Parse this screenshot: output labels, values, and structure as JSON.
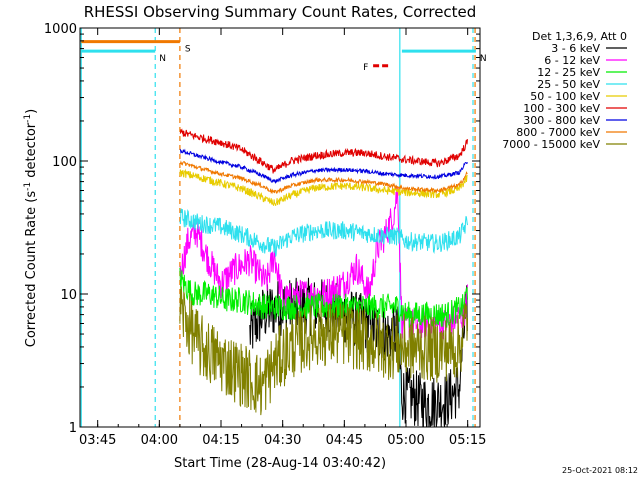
{
  "chart_data": {
    "type": "line",
    "title": "RHESSI Observing Summary Count Rates, Corrected",
    "xlabel": "Start Time (28-Aug-14 03:40:42)",
    "ylabel": "Corrected Count Rate (s",
    "ylabel_sup": "-1",
    "ylabel_mid": " detector",
    "ylabel_sup2": "-1",
    "ylabel_end": ")",
    "y_scale": "log",
    "ylim": [
      1,
      1000
    ],
    "xlim": [
      "03:40:42",
      "05:18:00"
    ],
    "x_ticks": [
      "03:45",
      "04:00",
      "04:15",
      "04:30",
      "04:45",
      "05:00",
      "05:15"
    ],
    "y_ticks": [
      "1",
      "10",
      "100",
      "1000"
    ],
    "legend_header": "Det 1,3,6,9, Att 0",
    "legend_placement": "right",
    "footer_timestamp": "25-Oct-2021 08:12",
    "flags": [
      {
        "label": "S",
        "color": "#f07800",
        "from": "03:41",
        "to": "04:05",
        "level": 790
      },
      {
        "label": "N",
        "color": "#2ee0ee",
        "from": "03:41",
        "to": "03:59",
        "level": 670
      },
      {
        "label": "N",
        "color": "#2ee0ee",
        "from": "04:59",
        "to": "05:17",
        "level": 670
      },
      {
        "label": "F",
        "color": "#e00000",
        "from": "04:52",
        "to": "04:56",
        "level": 520
      }
    ],
    "vlines": [
      {
        "time": "03:41",
        "color": "#2ee0ee",
        "style": "solid"
      },
      {
        "time": "03:59",
        "color": "#2ee0ee",
        "style": "dashed"
      },
      {
        "time": "04:05",
        "color": "#f07800",
        "style": "dashed"
      },
      {
        "time": "04:58.5",
        "color": "#2ee0ee",
        "style": "solid"
      },
      {
        "time": "05:16.3",
        "color": "#2ee0ee",
        "style": "dashed"
      },
      {
        "time": "05:16.8",
        "color": "#f07800",
        "style": "dashed"
      }
    ],
    "series": [
      {
        "name": "3 - 6 keV",
        "color": "#000000",
        "noise": 0.22,
        "points": [
          [
            "04:22",
            5
          ],
          [
            "04:25",
            7
          ],
          [
            "04:29",
            8
          ],
          [
            "04:35",
            8
          ],
          [
            "04:40",
            8
          ],
          [
            "04:45",
            7
          ],
          [
            "04:50",
            6
          ],
          [
            "04:55",
            5
          ],
          [
            "04:58",
            5
          ],
          [
            "04:59",
            1.8
          ],
          [
            "05:05",
            1.5
          ],
          [
            "05:10",
            1.6
          ],
          [
            "05:13",
            2
          ],
          [
            "05:14",
            5
          ],
          [
            "05:15",
            8
          ]
        ]
      },
      {
        "name": "6 - 12 keV",
        "color": "#ff00ff",
        "noise": 0.12,
        "points": [
          [
            "04:05",
            14
          ],
          [
            "04:07",
            25
          ],
          [
            "04:09",
            30
          ],
          [
            "04:12",
            18
          ],
          [
            "04:15",
            12
          ],
          [
            "04:18",
            15
          ],
          [
            "04:22",
            18
          ],
          [
            "04:26",
            12
          ],
          [
            "04:28",
            20
          ],
          [
            "04:30",
            9
          ],
          [
            "04:35",
            10
          ],
          [
            "04:40",
            10
          ],
          [
            "04:45",
            12
          ],
          [
            "04:48",
            16
          ],
          [
            "04:51",
            10
          ],
          [
            "04:53",
            22
          ],
          [
            "04:55",
            28
          ],
          [
            "04:57",
            40
          ],
          [
            "04:58",
            62
          ],
          [
            "04:59",
            6
          ],
          [
            "05:05",
            6
          ],
          [
            "05:10",
            6
          ],
          [
            "05:14",
            7
          ],
          [
            "05:15",
            10
          ]
        ]
      },
      {
        "name": "12 - 25 keV",
        "color": "#00ee00",
        "noise": 0.1,
        "points": [
          [
            "04:05",
            13
          ],
          [
            "04:08",
            10
          ],
          [
            "04:12",
            10
          ],
          [
            "04:16",
            9
          ],
          [
            "04:20",
            9
          ],
          [
            "04:26",
            8
          ],
          [
            "04:30",
            8
          ],
          [
            "04:40",
            8
          ],
          [
            "04:50",
            8
          ],
          [
            "04:58",
            8
          ],
          [
            "05:00",
            7
          ],
          [
            "05:10",
            7
          ],
          [
            "05:14",
            8
          ],
          [
            "05:15",
            11
          ]
        ]
      },
      {
        "name": "25 - 50 keV",
        "color": "#2ee0ee",
        "noise": 0.07,
        "points": [
          [
            "04:05",
            38
          ],
          [
            "04:10",
            34
          ],
          [
            "04:15",
            32
          ],
          [
            "04:20",
            28
          ],
          [
            "04:25",
            24
          ],
          [
            "04:28",
            22
          ],
          [
            "04:32",
            27
          ],
          [
            "04:38",
            30
          ],
          [
            "04:45",
            30
          ],
          [
            "04:52",
            28
          ],
          [
            "04:58",
            27
          ],
          [
            "05:00",
            25
          ],
          [
            "05:08",
            24
          ],
          [
            "05:13",
            27
          ],
          [
            "05:15",
            35
          ]
        ]
      },
      {
        "name": "50 - 100 keV",
        "color": "#e8cc00",
        "noise": 0.03,
        "points": [
          [
            "04:05",
            82
          ],
          [
            "04:10",
            75
          ],
          [
            "04:15",
            68
          ],
          [
            "04:20",
            62
          ],
          [
            "04:25",
            53
          ],
          [
            "04:28",
            48
          ],
          [
            "04:32",
            55
          ],
          [
            "04:38",
            63
          ],
          [
            "04:45",
            65
          ],
          [
            "04:50",
            63
          ],
          [
            "04:55",
            60
          ],
          [
            "05:00",
            58
          ],
          [
            "05:08",
            56
          ],
          [
            "05:13",
            62
          ],
          [
            "05:15",
            75
          ]
        ]
      },
      {
        "name": "100 - 300 keV",
        "color": "#e00000",
        "noise": 0.03,
        "points": [
          [
            "04:05",
            165
          ],
          [
            "04:10",
            150
          ],
          [
            "04:15",
            138
          ],
          [
            "04:20",
            122
          ],
          [
            "04:25",
            98
          ],
          [
            "04:28",
            85
          ],
          [
            "04:32",
            100
          ],
          [
            "04:38",
            110
          ],
          [
            "04:45",
            115
          ],
          [
            "04:50",
            115
          ],
          [
            "04:55",
            108
          ],
          [
            "05:00",
            102
          ],
          [
            "05:08",
            96
          ],
          [
            "05:13",
            110
          ],
          [
            "05:15",
            140
          ]
        ]
      },
      {
        "name": "300 - 800 keV",
        "color": "#0000e0",
        "noise": 0.015,
        "points": [
          [
            "04:05",
            120
          ],
          [
            "04:10",
            108
          ],
          [
            "04:15",
            98
          ],
          [
            "04:20",
            90
          ],
          [
            "04:25",
            78
          ],
          [
            "04:28",
            70
          ],
          [
            "04:32",
            78
          ],
          [
            "04:38",
            85
          ],
          [
            "04:45",
            86
          ],
          [
            "04:50",
            84
          ],
          [
            "04:55",
            80
          ],
          [
            "05:00",
            78
          ],
          [
            "05:08",
            76
          ],
          [
            "05:13",
            82
          ],
          [
            "05:15",
            100
          ]
        ]
      },
      {
        "name": "800 - 7000 keV",
        "color": "#f07800",
        "noise": 0.015,
        "points": [
          [
            "04:05",
            98
          ],
          [
            "04:10",
            88
          ],
          [
            "04:15",
            80
          ],
          [
            "04:20",
            74
          ],
          [
            "04:25",
            65
          ],
          [
            "04:28",
            58
          ],
          [
            "04:32",
            65
          ],
          [
            "04:38",
            72
          ],
          [
            "04:45",
            72
          ],
          [
            "04:50",
            70
          ],
          [
            "04:55",
            67
          ],
          [
            "05:00",
            62
          ],
          [
            "05:08",
            60
          ],
          [
            "05:13",
            66
          ],
          [
            "05:15",
            82
          ]
        ]
      },
      {
        "name": "7000 - 15000 keV",
        "color": "#808000",
        "noise": 0.25,
        "points": [
          [
            "04:05",
            8
          ],
          [
            "04:07",
            6
          ],
          [
            "04:10",
            4
          ],
          [
            "04:13",
            3.5
          ],
          [
            "04:16",
            3
          ],
          [
            "04:20",
            2.5
          ],
          [
            "04:25",
            2
          ],
          [
            "04:28",
            3
          ],
          [
            "04:32",
            4
          ],
          [
            "04:38",
            5
          ],
          [
            "04:45",
            5
          ],
          [
            "04:50",
            4.5
          ],
          [
            "04:55",
            4
          ],
          [
            "05:00",
            4
          ],
          [
            "05:08",
            3.8
          ],
          [
            "05:13",
            4
          ],
          [
            "05:15",
            7
          ]
        ]
      }
    ]
  }
}
